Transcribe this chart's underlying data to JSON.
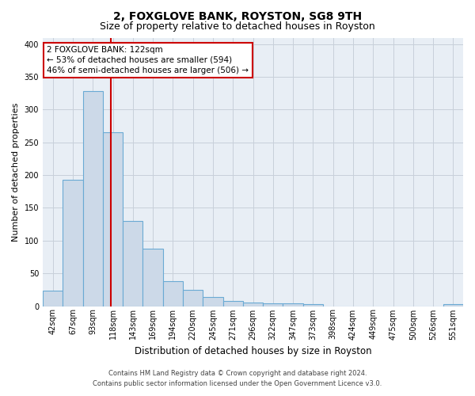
{
  "title": "2, FOXGLOVE BANK, ROYSTON, SG8 9TH",
  "subtitle": "Size of property relative to detached houses in Royston",
  "xlabel": "Distribution of detached houses by size in Royston",
  "ylabel": "Number of detached properties",
  "categories": [
    "42sqm",
    "67sqm",
    "93sqm",
    "118sqm",
    "143sqm",
    "169sqm",
    "194sqm",
    "220sqm",
    "245sqm",
    "271sqm",
    "296sqm",
    "322sqm",
    "347sqm",
    "373sqm",
    "398sqm",
    "424sqm",
    "449sqm",
    "475sqm",
    "500sqm",
    "526sqm",
    "551sqm"
  ],
  "values": [
    23,
    193,
    328,
    265,
    130,
    88,
    38,
    25,
    14,
    8,
    5,
    4,
    4,
    3,
    0,
    0,
    0,
    0,
    0,
    0,
    3
  ],
  "bar_color": "#ccd9e8",
  "bar_edge_color": "#6aaad4",
  "vline_color": "#cc0000",
  "vline_x_index": 3,
  "grid_color": "#c8d0da",
  "background_color": "#e8eef5",
  "annotation_line1": "2 FOXGLOVE BANK: 122sqm",
  "annotation_line2": "← 53% of detached houses are smaller (594)",
  "annotation_line3": "46% of semi-detached houses are larger (506) →",
  "annotation_box_color": "#ffffff",
  "annotation_box_edge": "#cc0000",
  "footer_line1": "Contains HM Land Registry data © Crown copyright and database right 2024.",
  "footer_line2": "Contains public sector information licensed under the Open Government Licence v3.0.",
  "ylim": [
    0,
    410
  ],
  "yticks": [
    0,
    50,
    100,
    150,
    200,
    250,
    300,
    350,
    400
  ],
  "title_fontsize": 10,
  "subtitle_fontsize": 9,
  "tick_fontsize": 7,
  "ylabel_fontsize": 8,
  "xlabel_fontsize": 8.5,
  "annotation_fontsize": 7.5,
  "footer_fontsize": 6
}
